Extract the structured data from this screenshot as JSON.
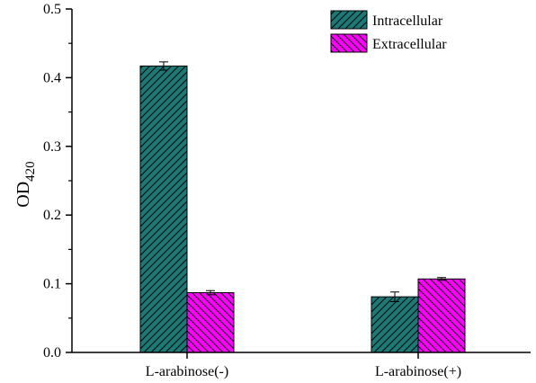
{
  "chart_data": {
    "type": "bar",
    "categories": [
      "L-arabinose(-)",
      "L-arabinose(+)"
    ],
    "series": [
      {
        "name": "Intracellular",
        "values": [
          0.417,
          0.081
        ],
        "errors": [
          0.006,
          0.007
        ],
        "color": "#1a7a78",
        "hatch": "forward-diagonal"
      },
      {
        "name": "Extracellular",
        "values": [
          0.087,
          0.107
        ],
        "errors": [
          0.003,
          0.002
        ],
        "color": "#ff00ff",
        "hatch": "back-diagonal"
      }
    ],
    "ylabel_main": "OD",
    "ylabel_sub": "420",
    "xlabel": "",
    "ylim": [
      0,
      0.5
    ],
    "yticks": [
      "0.0",
      "0.1",
      "0.2",
      "0.3",
      "0.4",
      "0.5"
    ],
    "grid": false,
    "legend_position": "top-right"
  }
}
